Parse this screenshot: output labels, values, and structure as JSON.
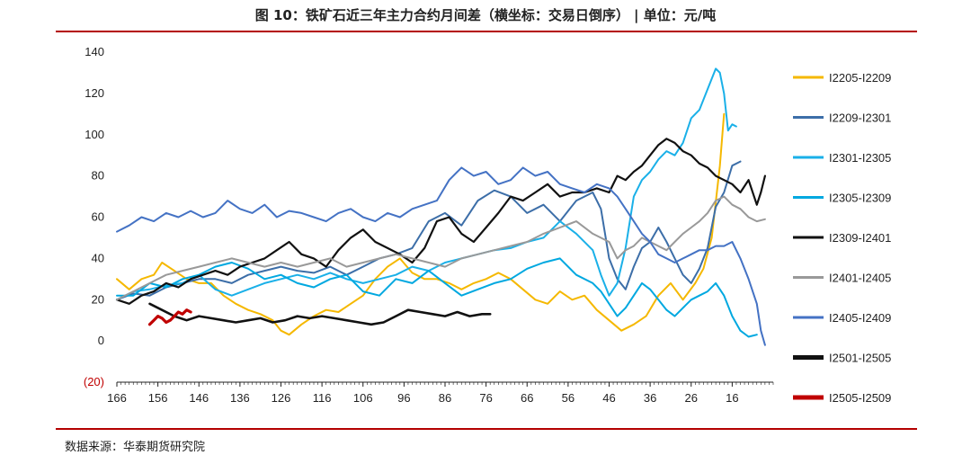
{
  "header": {
    "title": "图 10：铁矿石近三年主力合约月间差（横坐标：交易日倒序） | 单位：元/吨"
  },
  "footer": {
    "source": "数据来源：华泰期货研究院"
  },
  "chart_data": {
    "type": "line",
    "title": "图 10：铁矿石近三年主力合约月间差（横坐标：交易日倒序） | 单位：元/吨",
    "xlabel": "",
    "ylabel": "",
    "x_reversed": true,
    "xlim": [
      166,
      6
    ],
    "ylim": [
      -20,
      140
    ],
    "x_ticks": [
      166,
      156,
      146,
      136,
      126,
      116,
      106,
      96,
      86,
      76,
      66,
      56,
      46,
      36,
      26,
      16
    ],
    "y_ticks": [
      {
        "value": 140,
        "label": "140"
      },
      {
        "value": 120,
        "label": "120"
      },
      {
        "value": 100,
        "label": "100"
      },
      {
        "value": 80,
        "label": "80"
      },
      {
        "value": 60,
        "label": "60"
      },
      {
        "value": 40,
        "label": "40"
      },
      {
        "value": 20,
        "label": "20"
      },
      {
        "value": 0,
        "label": "0"
      },
      {
        "value": -20,
        "label": "(20)"
      }
    ],
    "grid": false,
    "legend_position": "right",
    "series": [
      {
        "name": "I2205-I2209",
        "color": "#f5b800",
        "width": 2,
        "x": [
          166,
          163,
          160,
          157,
          155,
          152,
          149,
          146,
          143,
          140,
          137,
          134,
          131,
          128,
          126,
          124,
          121,
          118,
          115,
          112,
          109,
          106,
          103,
          100,
          97,
          94,
          91,
          88,
          85,
          82,
          79,
          76,
          73,
          70,
          67,
          64,
          61,
          58,
          55,
          52,
          49,
          46,
          43,
          40,
          37,
          34,
          31,
          28,
          25,
          23,
          21,
          19,
          18
        ],
        "values": [
          30,
          25,
          30,
          32,
          38,
          34,
          30,
          28,
          28,
          22,
          18,
          15,
          13,
          10,
          5,
          3,
          8,
          12,
          15,
          14,
          18,
          22,
          30,
          36,
          40,
          33,
          30,
          30,
          28,
          25,
          28,
          30,
          33,
          30,
          25,
          20,
          18,
          24,
          20,
          22,
          15,
          10,
          5,
          8,
          12,
          22,
          28,
          20,
          28,
          35,
          50,
          85,
          110
        ]
      },
      {
        "name": "I2209-I2301",
        "color": "#3c6ea8",
        "width": 2,
        "x": [
          166,
          162,
          158,
          154,
          150,
          146,
          142,
          138,
          134,
          130,
          126,
          122,
          118,
          114,
          110,
          106,
          102,
          98,
          94,
          90,
          86,
          82,
          78,
          74,
          70,
          66,
          62,
          58,
          54,
          50,
          48,
          46,
          44,
          42,
          40,
          38,
          36,
          34,
          32,
          30,
          28,
          26,
          24,
          22,
          20,
          18,
          16,
          14
        ],
        "values": [
          20,
          23,
          22,
          26,
          28,
          30,
          30,
          28,
          32,
          34,
          36,
          34,
          33,
          36,
          32,
          36,
          40,
          42,
          45,
          58,
          62,
          56,
          68,
          73,
          70,
          62,
          66,
          58,
          68,
          72,
          64,
          40,
          30,
          25,
          36,
          45,
          48,
          55,
          48,
          40,
          32,
          28,
          35,
          45,
          65,
          72,
          85,
          87
        ]
      },
      {
        "name": "I2301-I2305",
        "color": "#1ab0e8",
        "width": 2,
        "x": [
          166,
          162,
          158,
          154,
          150,
          146,
          142,
          138,
          134,
          130,
          126,
          122,
          118,
          114,
          110,
          106,
          102,
          98,
          94,
          90,
          86,
          82,
          78,
          74,
          70,
          66,
          62,
          58,
          54,
          50,
          48,
          46,
          44,
          42,
          40,
          38,
          36,
          34,
          32,
          30,
          28,
          26,
          24,
          22,
          20,
          19,
          18,
          17,
          16,
          15
        ],
        "values": [
          20,
          24,
          25,
          27,
          28,
          32,
          25,
          22,
          25,
          28,
          30,
          32,
          30,
          33,
          30,
          28,
          30,
          32,
          36,
          34,
          38,
          40,
          42,
          44,
          45,
          48,
          50,
          58,
          52,
          44,
          32,
          22,
          28,
          45,
          70,
          78,
          82,
          88,
          92,
          90,
          96,
          108,
          112,
          122,
          132,
          130,
          120,
          102,
          105,
          104
        ]
      },
      {
        "name": "I2305-I2309",
        "color": "#00a8e0",
        "width": 2,
        "x": [
          166,
          162,
          158,
          154,
          150,
          146,
          142,
          138,
          134,
          130,
          126,
          122,
          118,
          114,
          110,
          106,
          102,
          98,
          94,
          90,
          86,
          82,
          78,
          74,
          70,
          66,
          62,
          58,
          54,
          50,
          48,
          46,
          44,
          42,
          40,
          38,
          36,
          34,
          32,
          30,
          28,
          26,
          24,
          22,
          20,
          18,
          16,
          14,
          12,
          10
        ],
        "values": [
          22,
          22,
          28,
          26,
          30,
          32,
          36,
          38,
          35,
          30,
          32,
          28,
          26,
          30,
          32,
          24,
          22,
          30,
          28,
          34,
          28,
          22,
          25,
          28,
          30,
          35,
          38,
          40,
          32,
          28,
          24,
          18,
          12,
          16,
          22,
          28,
          25,
          20,
          15,
          12,
          16,
          20,
          22,
          24,
          28,
          22,
          12,
          5,
          2,
          3
        ]
      },
      {
        "name": "I2309-I2401",
        "color": "#111111",
        "width": 2.2,
        "x": [
          166,
          163,
          160,
          157,
          154,
          151,
          148,
          145,
          142,
          139,
          136,
          133,
          130,
          127,
          124,
          121,
          118,
          115,
          112,
          109,
          106,
          103,
          100,
          97,
          94,
          91,
          88,
          85,
          82,
          79,
          76,
          73,
          70,
          67,
          64,
          61,
          58,
          55,
          52,
          49,
          46,
          44,
          42,
          40,
          38,
          36,
          34,
          32,
          30,
          28,
          26,
          24,
          22,
          20,
          18,
          16,
          14,
          12,
          10,
          9,
          8
        ],
        "values": [
          20,
          18,
          22,
          24,
          28,
          26,
          30,
          32,
          34,
          32,
          36,
          38,
          40,
          44,
          48,
          42,
          40,
          36,
          44,
          50,
          54,
          48,
          45,
          42,
          38,
          45,
          58,
          60,
          52,
          48,
          55,
          62,
          70,
          68,
          72,
          76,
          70,
          72,
          72,
          74,
          72,
          80,
          78,
          82,
          85,
          90,
          95,
          98,
          96,
          92,
          90,
          86,
          84,
          80,
          78,
          76,
          72,
          78,
          66,
          72,
          80
        ]
      },
      {
        "name": "I2401-I2405",
        "color": "#999999",
        "width": 2,
        "x": [
          166,
          162,
          158,
          154,
          150,
          146,
          142,
          138,
          134,
          130,
          126,
          122,
          118,
          114,
          110,
          106,
          102,
          98,
          94,
          90,
          86,
          82,
          78,
          74,
          70,
          66,
          62,
          58,
          54,
          50,
          46,
          44,
          42,
          40,
          38,
          36,
          34,
          32,
          30,
          28,
          26,
          24,
          22,
          20,
          18,
          16,
          14,
          12,
          10,
          8
        ],
        "values": [
          20,
          24,
          28,
          32,
          34,
          36,
          38,
          40,
          38,
          36,
          38,
          36,
          38,
          40,
          36,
          38,
          40,
          42,
          40,
          38,
          36,
          40,
          42,
          44,
          46,
          48,
          52,
          55,
          58,
          52,
          48,
          40,
          44,
          46,
          50,
          48,
          46,
          44,
          48,
          52,
          55,
          58,
          62,
          68,
          70,
          66,
          64,
          60,
          58,
          59
        ]
      },
      {
        "name": "I2405-I2409",
        "color": "#4472c4",
        "width": 2,
        "x": [
          166,
          163,
          160,
          157,
          154,
          151,
          148,
          145,
          142,
          139,
          136,
          133,
          130,
          127,
          124,
          121,
          118,
          115,
          112,
          109,
          106,
          103,
          100,
          97,
          94,
          91,
          88,
          85,
          82,
          79,
          76,
          73,
          70,
          67,
          64,
          61,
          58,
          55,
          52,
          49,
          46,
          44,
          42,
          40,
          38,
          36,
          34,
          32,
          30,
          28,
          26,
          24,
          22,
          20,
          18,
          16,
          14,
          12,
          10,
          9,
          8
        ],
        "values": [
          53,
          56,
          60,
          58,
          62,
          60,
          63,
          60,
          62,
          68,
          64,
          62,
          66,
          60,
          63,
          62,
          60,
          58,
          62,
          64,
          60,
          58,
          62,
          60,
          64,
          66,
          68,
          78,
          84,
          80,
          82,
          76,
          78,
          84,
          80,
          82,
          76,
          74,
          72,
          76,
          74,
          70,
          64,
          58,
          52,
          48,
          42,
          40,
          38,
          40,
          42,
          44,
          44,
          46,
          46,
          48,
          40,
          30,
          18,
          5,
          -2
        ]
      },
      {
        "name": "I2501-I2505",
        "color": "#111111",
        "width": 2.6,
        "x": [
          158,
          155,
          152,
          149,
          146,
          143,
          140,
          137,
          134,
          131,
          128,
          125,
          122,
          119,
          116,
          113,
          110,
          107,
          104,
          101,
          98,
          95,
          92,
          89,
          86,
          83,
          80,
          77,
          75
        ],
        "values": [
          18,
          15,
          12,
          10,
          12,
          11,
          10,
          9,
          10,
          11,
          9,
          10,
          12,
          11,
          12,
          11,
          10,
          9,
          8,
          9,
          12,
          15,
          14,
          13,
          12,
          14,
          12,
          13,
          13
        ]
      },
      {
        "name": "I2505-I2509",
        "color": "#c00000",
        "width": 3.2,
        "x": [
          158,
          157,
          156,
          155,
          154,
          153,
          152,
          151,
          150,
          149,
          148
        ],
        "values": [
          8,
          10,
          12,
          11,
          9,
          10,
          12,
          14,
          13,
          15,
          14
        ]
      }
    ]
  }
}
